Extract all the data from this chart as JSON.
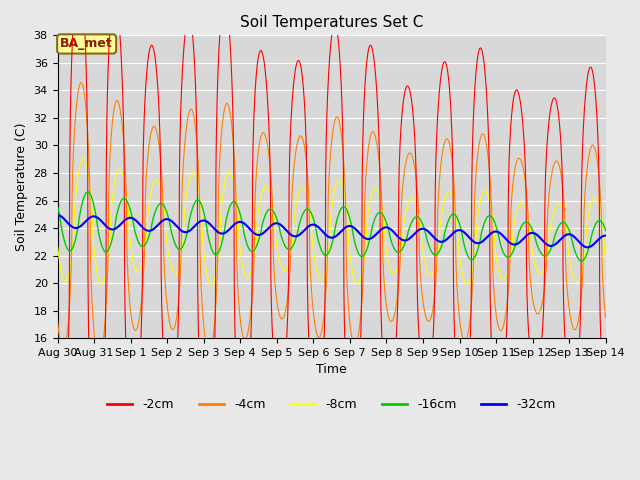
{
  "title": "Soil Temperatures Set C",
  "xlabel": "Time",
  "ylabel": "Soil Temperature (C)",
  "ylim": [
    16,
    38
  ],
  "yticks": [
    16,
    18,
    20,
    22,
    24,
    26,
    28,
    30,
    32,
    34,
    36,
    38
  ],
  "xtick_labels": [
    "Aug 30",
    "Aug 31",
    "Sep 1",
    "Sep 2",
    "Sep 3",
    "Sep 4",
    "Sep 5",
    "Sep 6",
    "Sep 7",
    "Sep 8",
    "Sep 9",
    "Sep 10",
    "Sep 11",
    "Sep 12",
    "Sep 13",
    "Sep 14"
  ],
  "colors": {
    "-2cm": "#ff0000",
    "-4cm": "#ff8000",
    "-8cm": "#ffff00",
    "-16cm": "#00cc00",
    "-32cm": "#0000ff"
  },
  "legend_labels": [
    "-2cm",
    "-4cm",
    "-8cm",
    "-16cm",
    "-32cm"
  ],
  "background_color": "#e8e8e8",
  "plot_bg_color": "#d8d8d8",
  "annotation_text": "BA_met",
  "annotation_bg": "#ffff99",
  "annotation_border": "#8b6914",
  "title_fontsize": 11,
  "label_fontsize": 9,
  "tick_fontsize": 8,
  "legend_fontsize": 9,
  "n_days": 15,
  "pts_per_day": 144
}
